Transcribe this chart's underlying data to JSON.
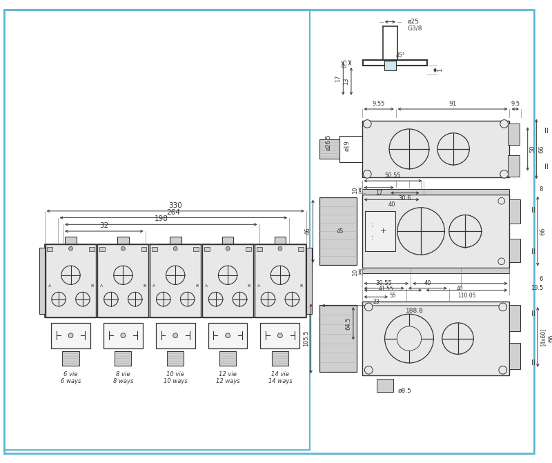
{
  "bg_color": "#ffffff",
  "border_color": "#5bb8d4",
  "line_color": "#333333",
  "dim_color": "#333333",
  "gray1": "#e8e8e8",
  "gray2": "#d0d0d0",
  "gray3": "#b0b0b0",
  "light_blue_fill": "#cce8f0",
  "fig_width": 8.0,
  "fig_height": 6.71,
  "labels": [
    "6 vie\n6 ways",
    "8 vie\n8 ways",
    "10 vie\n10 ways",
    "12 vie\n12 ways",
    "14 vie\n14 ways"
  ]
}
